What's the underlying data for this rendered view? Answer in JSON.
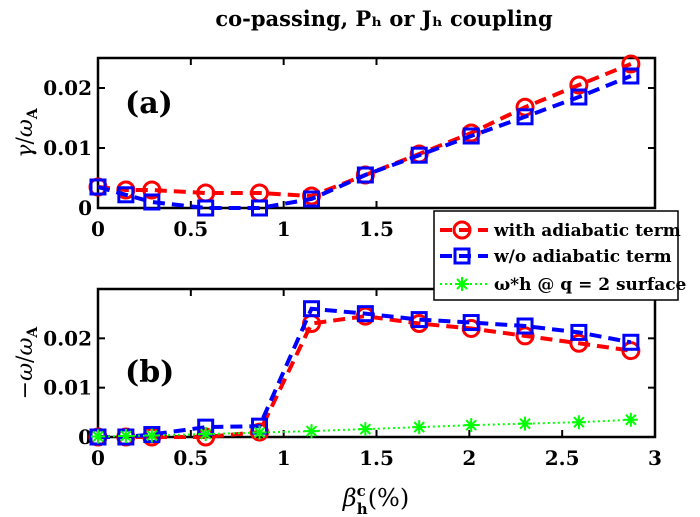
{
  "chart_data": [
    {
      "type": "line",
      "title": "co-passing, Pₕ or Jₕ coupling",
      "panel_label": "(a)",
      "ylabel": "γ/ω_A",
      "xlim": [
        0,
        3
      ],
      "ylim": [
        0,
        0.025
      ],
      "x_ticks": [
        "0",
        "0.5",
        "1",
        "1.5"
      ],
      "x_tick_values": [
        0,
        0.5,
        1,
        1.5
      ],
      "y_ticks": [
        "0",
        "0.01",
        "0.02"
      ],
      "y_tick_values": [
        0,
        0.01,
        0.02
      ],
      "grid": false,
      "series": [
        {
          "name": "with adiabatic term",
          "color": "#ff0000",
          "marker": "circle",
          "linestyle": "dashed",
          "x": [
            0,
            0.15,
            0.29,
            0.58,
            0.87,
            1.15,
            1.44,
            1.73,
            2.01,
            2.3,
            2.59,
            2.87
          ],
          "y": [
            0.0035,
            0.003,
            0.003,
            0.0025,
            0.0025,
            0.002,
            0.0055,
            0.009,
            0.0125,
            0.0168,
            0.0205,
            0.024
          ]
        },
        {
          "name": "w/o adiabatic term",
          "color": "#0000ff",
          "marker": "square",
          "linestyle": "dashed",
          "x": [
            0,
            0.15,
            0.29,
            0.58,
            0.87,
            1.15,
            1.44,
            1.73,
            2.01,
            2.3,
            2.59,
            2.87
          ],
          "y": [
            0.0035,
            0.0022,
            0.001,
            0.0,
            0.0,
            0.0015,
            0.0055,
            0.0088,
            0.012,
            0.0152,
            0.0185,
            0.022
          ]
        }
      ]
    },
    {
      "type": "line",
      "panel_label": "(b)",
      "ylabel": "−ω/ω_A",
      "xlabel": "β_h^c(%)",
      "xlim": [
        0,
        3
      ],
      "ylim": [
        0,
        0.03
      ],
      "x_ticks": [
        "0",
        "0.5",
        "1",
        "1.5",
        "2",
        "2.5",
        "3"
      ],
      "x_tick_values": [
        0,
        0.5,
        1,
        1.5,
        2,
        2.5,
        3
      ],
      "y_ticks": [
        "0",
        "0.01",
        "0.02"
      ],
      "y_tick_values": [
        0,
        0.01,
        0.02
      ],
      "grid": false,
      "legend_position": "top-right",
      "series": [
        {
          "name": "with adiabatic term",
          "color": "#ff0000",
          "marker": "circle",
          "linestyle": "dashed",
          "x": [
            0,
            0.15,
            0.29,
            0.58,
            0.87,
            1.15,
            1.44,
            1.73,
            2.01,
            2.3,
            2.59,
            2.87
          ],
          "y": [
            0.0,
            0.0,
            0.0,
            0.0,
            0.001,
            0.023,
            0.0245,
            0.023,
            0.022,
            0.0205,
            0.019,
            0.0175
          ]
        },
        {
          "name": "w/o adiabatic term",
          "color": "#0000ff",
          "marker": "square",
          "linestyle": "dashed",
          "x": [
            0,
            0.15,
            0.29,
            0.58,
            0.87,
            1.15,
            1.44,
            1.73,
            2.01,
            2.3,
            2.59,
            2.87
          ],
          "y": [
            0.0,
            0.0,
            0.0005,
            0.002,
            0.0022,
            0.026,
            0.025,
            0.0238,
            0.0232,
            0.0225,
            0.0212,
            0.0192
          ]
        },
        {
          "name": "ω*h @ q = 2 surface",
          "color": "#00ff00",
          "marker": "star",
          "linestyle": "dotted",
          "x": [
            0,
            0.15,
            0.29,
            0.58,
            0.87,
            1.15,
            1.44,
            1.73,
            2.01,
            2.3,
            2.59,
            2.87
          ],
          "y": [
            0.0001,
            0.0002,
            0.0003,
            0.0006,
            0.0009,
            0.0012,
            0.0016,
            0.002,
            0.0024,
            0.0027,
            0.003,
            0.0035
          ]
        }
      ]
    }
  ]
}
